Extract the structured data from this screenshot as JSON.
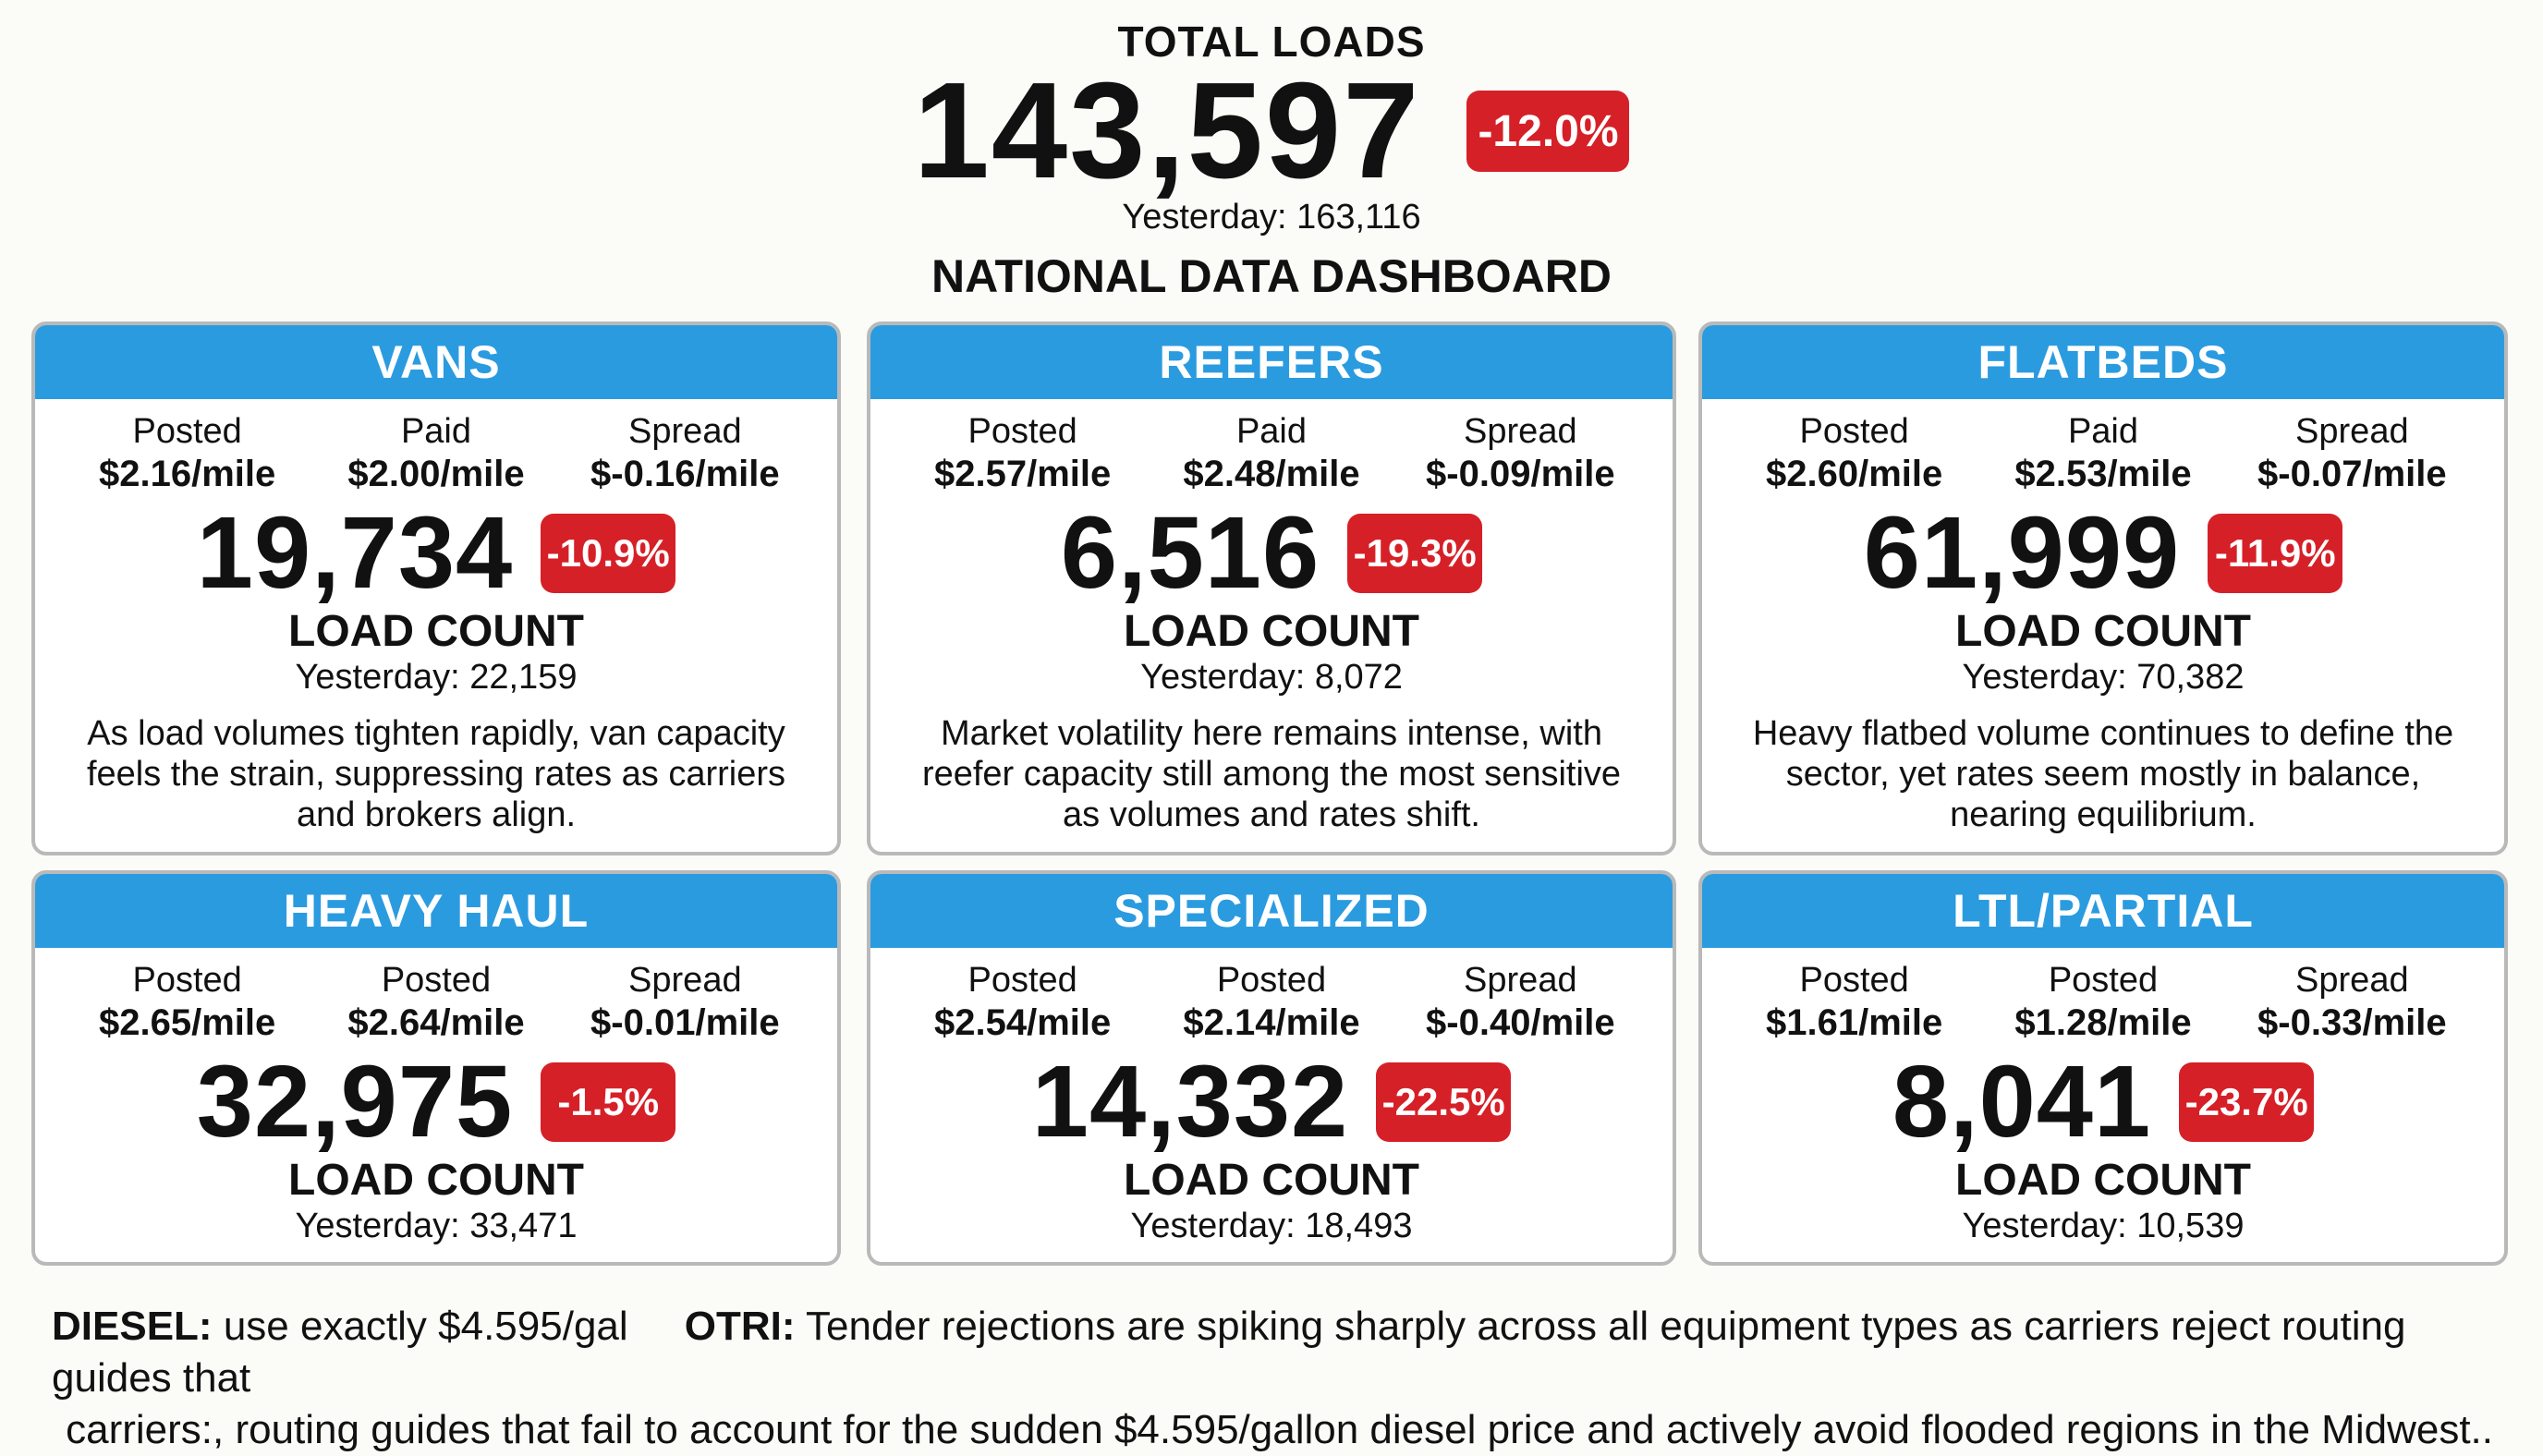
{
  "header": {
    "total_label": "TOTAL LOADS",
    "total_value": "143,597",
    "total_change": "-12.0%",
    "total_yesterday": "Yesterday: 163,116",
    "dashboard_title": "NATIONAL DATA DASHBOARD"
  },
  "cards": [
    {
      "title": "VANS",
      "m1_label": "Posted",
      "m1_value": "$2.16/mile",
      "m2_label": "Paid",
      "m2_value": "$2.00/mile",
      "m3_label": "Spread",
      "m3_value": "$-0.16/mile",
      "count": "19,734",
      "change": "-10.9%",
      "count_label": "LOAD COUNT",
      "yesterday": "Yesterday: 22,159",
      "note": "As load volumes tighten rapidly, van capacity feels the strain, suppressing rates as carriers and brokers align."
    },
    {
      "title": "REEFERS",
      "m1_label": "Posted",
      "m1_value": "$2.57/mile",
      "m2_label": "Paid",
      "m2_value": "$2.48/mile",
      "m3_label": "Spread",
      "m3_value": "$-0.09/mile",
      "count": "6,516",
      "change": "-19.3%",
      "count_label": "LOAD COUNT",
      "yesterday": "Yesterday: 8,072",
      "note": "Market volatility here remains intense, with reefer capacity still among the most sensitive as volumes and rates shift."
    },
    {
      "title": "FLATBEDS",
      "m1_label": "Posted",
      "m1_value": "$2.60/mile",
      "m2_label": "Paid",
      "m2_value": "$2.53/mile",
      "m3_label": "Spread",
      "m3_value": "$-0.07/mile",
      "count": "61,999",
      "change": "-11.9%",
      "count_label": "LOAD COUNT",
      "yesterday": "Yesterday: 70,382",
      "note": "Heavy flatbed volume continues to define the sector, yet rates seem mostly in balance, nearing equilibrium."
    },
    {
      "title": "HEAVY HAUL",
      "m1_label": "Posted",
      "m1_value": "$2.65/mile",
      "m2_label": "Posted",
      "m2_value": "$2.64/mile",
      "m3_label": "Spread",
      "m3_value": "$-0.01/mile",
      "count": "32,975",
      "change": "-1.5%",
      "count_label": "LOAD COUNT",
      "yesterday": "Yesterday: 33,471"
    },
    {
      "title": "SPECIALIZED",
      "m1_label": "Posted",
      "m1_value": "$2.54/mile",
      "m2_label": "Posted",
      "m2_value": "$2.14/mile",
      "m3_label": "Spread",
      "m3_value": "$-0.40/mile",
      "count": "14,332",
      "change": "-22.5%",
      "count_label": "LOAD COUNT",
      "yesterday": "Yesterday: 18,493"
    },
    {
      "title": "LTL/PARTIAL",
      "m1_label": "Posted",
      "m1_value": "$1.61/mile",
      "m2_label": "Posted",
      "m2_value": "$1.28/mile",
      "m3_label": "Spread",
      "m3_value": "$-0.33/mile",
      "count": "8,041",
      "change": "-23.7%",
      "count_label": "LOAD COUNT",
      "yesterday": "Yesterday: 10,539"
    }
  ],
  "footer": {
    "diesel_label": "DIESEL:",
    "diesel_text": "use exactly $4.595/gal",
    "otri_label": "OTRI:",
    "otri_text": "Tender rejections are spiking sharply across all equipment types as carriers reject routing guides that",
    "line2": "carriers:, routing guides that fail to account for the sudden $4.595/gallon diesel price and actively avoid flooded regions in the Midwest.."
  },
  "colors": {
    "header_blue": "#2b9be0",
    "badge_red": "#d62027",
    "card_border": "#b9b9b9",
    "background": "#fbfbf8"
  }
}
